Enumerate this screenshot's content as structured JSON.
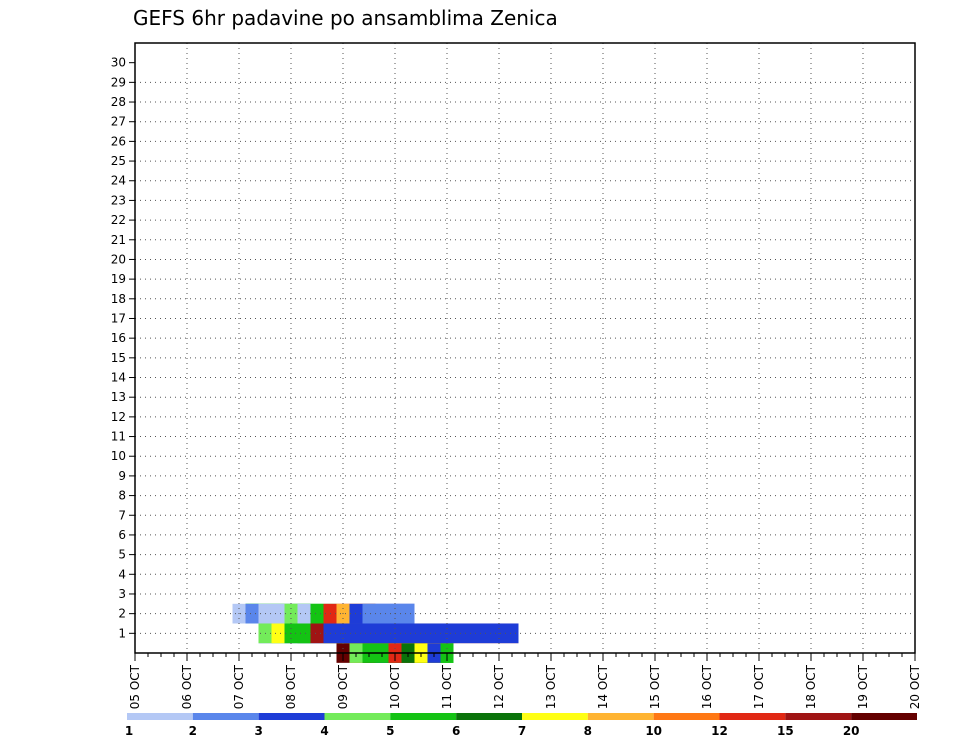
{
  "chart_data": {
    "type": "heatmap",
    "title": "GEFS 6hr padavine po ansamblima Zenica",
    "xlabel": "",
    "ylabel": "",
    "x_tick_labels": [
      "05 OCT",
      "06 OCT",
      "07 OCT",
      "08 OCT",
      "09 OCT",
      "10 OCT",
      "11 OCT",
      "12 OCT",
      "13 OCT",
      "14 OCT",
      "15 OCT",
      "16 OCT",
      "17 OCT",
      "18 OCT",
      "19 OCT",
      "20 OCT"
    ],
    "y_tick_labels": [
      "1",
      "2",
      "3",
      "4",
      "5",
      "6",
      "7",
      "8",
      "9",
      "10",
      "11",
      "12",
      "13",
      "14",
      "15",
      "16",
      "17",
      "18",
      "19",
      "20",
      "21",
      "22",
      "23",
      "24",
      "25",
      "26",
      "27",
      "28",
      "29",
      "30"
    ],
    "time_steps_6hr": 61,
    "members": 31,
    "grid": "dotted",
    "legend": {
      "position": "bottom",
      "levels": [
        "1",
        "2",
        "3",
        "4",
        "5",
        "6",
        "7",
        "8",
        "10",
        "12",
        "15",
        "20"
      ],
      "colors": [
        "#b4c8f5",
        "#5a86eb",
        "#1e3cd7",
        "#73eb5a",
        "#14c314",
        "#0a730a",
        "#ffff14",
        "#ffb432",
        "#ff7814",
        "#e12814",
        "#a01414",
        "#640000"
      ]
    },
    "cells": [
      [
        0,
        16,
        4,
        0
      ],
      [
        0,
        18,
        6,
        0
      ],
      [
        0,
        16,
        7,
        1
      ],
      [
        0,
        17,
        8,
        0
      ],
      [
        0,
        16,
        9,
        2
      ],
      [
        0,
        16,
        23,
        11
      ],
      [
        0,
        17,
        23,
        7
      ],
      [
        0,
        17,
        24,
        3
      ],
      [
        0,
        18,
        23,
        11
      ],
      [
        0,
        18,
        24,
        4
      ],
      [
        0,
        19,
        23,
        2
      ],
      [
        0,
        19,
        24,
        4
      ],
      [
        0,
        20,
        23,
        9
      ],
      [
        0,
        21,
        23,
        5
      ],
      [
        0,
        22,
        23,
        6
      ],
      [
        0,
        23,
        23,
        2
      ],
      [
        0,
        24,
        23,
        0
      ],
      [
        0,
        25,
        23,
        9
      ],
      [
        0,
        26,
        23,
        1
      ],
      [
        0,
        27,
        23,
        4
      ],
      [
        0,
        28,
        23,
        0
      ],
      [
        0,
        15,
        14,
        7
      ],
      [
        0,
        16,
        14,
        7
      ],
      [
        0,
        17,
        14,
        9
      ],
      [
        0,
        18,
        14,
        3
      ],
      [
        1,
        15,
        24,
        0
      ],
      [
        1,
        14,
        23,
        6
      ],
      [
        1,
        17,
        16,
        1
      ],
      [
        1,
        18,
        16,
        2
      ],
      [
        1,
        19,
        16,
        8
      ],
      [
        1,
        20,
        16,
        10
      ],
      [
        1,
        21,
        16,
        11
      ],
      [
        1,
        22,
        16,
        9
      ],
      [
        1,
        23,
        16,
        8
      ],
      [
        1,
        24,
        16,
        5
      ],
      [
        1,
        25,
        16,
        4
      ],
      [
        1,
        26,
        16,
        3
      ],
      [
        1,
        27,
        16,
        0
      ],
      [
        1,
        12,
        14,
        1
      ],
      [
        1,
        13,
        14,
        1
      ],
      [
        1,
        14,
        14,
        2
      ],
      [
        1,
        15,
        14,
        4
      ],
      [
        1,
        16,
        14,
        3
      ],
      [
        1,
        17,
        14,
        5
      ],
      [
        1,
        10,
        13,
        2
      ],
      [
        1,
        11,
        13,
        3
      ],
      [
        1,
        12,
        13,
        4
      ],
      [
        1,
        13,
        13,
        4
      ],
      [
        1,
        14,
        13,
        1
      ],
      [
        1,
        10,
        11,
        3
      ],
      [
        1,
        11,
        11,
        6
      ],
      [
        1,
        12,
        11,
        1
      ],
      [
        1,
        15,
        19,
        5
      ],
      [
        1,
        16,
        19,
        3
      ],
      [
        1,
        14,
        29,
        10
      ],
      [
        1,
        15,
        29,
        2
      ],
      [
        1,
        14,
        6,
        4
      ],
      [
        1,
        16,
        5,
        3
      ],
      [
        1,
        17,
        5,
        6
      ],
      [
        2,
        8,
        15,
        0
      ],
      [
        2,
        9,
        15,
        3
      ],
      [
        2,
        9,
        14,
        4
      ],
      [
        2,
        10,
        13,
        0
      ],
      [
        2,
        12,
        12,
        3
      ],
      [
        2,
        13,
        12,
        4
      ],
      [
        2,
        14,
        12,
        0
      ],
      [
        2,
        15,
        18,
        9
      ],
      [
        2,
        16,
        18,
        7
      ],
      [
        2,
        11,
        8,
        0
      ],
      [
        2,
        12,
        8,
        1
      ],
      [
        2,
        13,
        8,
        0
      ],
      [
        2,
        14,
        8,
        4
      ],
      [
        2,
        15,
        8,
        5
      ],
      [
        2,
        16,
        8,
        4
      ],
      [
        2,
        17,
        8,
        0
      ],
      [
        2,
        18,
        8,
        4
      ],
      [
        2,
        19,
        8,
        5
      ],
      [
        2,
        20,
        8,
        1
      ],
      [
        2,
        9,
        9,
        1
      ],
      [
        2,
        10,
        9,
        0
      ],
      [
        2,
        17,
        21,
        2
      ],
      [
        2,
        18,
        21,
        1
      ]
    ]
  }
}
